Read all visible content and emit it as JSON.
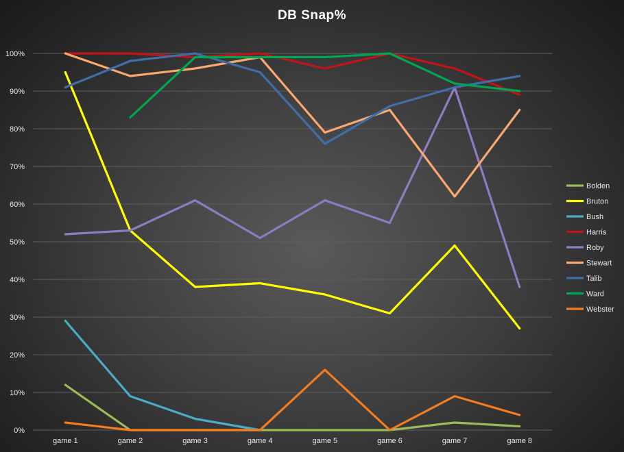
{
  "chart_data": {
    "type": "line",
    "title": "DB Snap%",
    "xlabel": "",
    "ylabel": "",
    "categories": [
      "game 1",
      "game 2",
      "game 3",
      "game 4",
      "game 5",
      "game 6",
      "game 7",
      "game 8"
    ],
    "ylim": [
      0,
      100
    ],
    "yticks": [
      0,
      10,
      20,
      30,
      40,
      50,
      60,
      70,
      80,
      90,
      100
    ],
    "ytick_suffix": "%",
    "grid": "horizontal",
    "legend_position": "right",
    "series": [
      {
        "name": "Bolden",
        "color": "#9bbb59",
        "values": [
          12,
          0,
          0,
          0,
          0,
          0,
          2,
          1
        ]
      },
      {
        "name": "Bruton",
        "color": "#ffff00",
        "values": [
          95,
          53,
          38,
          39,
          36,
          31,
          49,
          27
        ]
      },
      {
        "name": "Bush",
        "color": "#4bacc6",
        "values": [
          29,
          9,
          3,
          0,
          null,
          null,
          null,
          null
        ]
      },
      {
        "name": "Harris",
        "color": "#c0141a",
        "values": [
          100,
          100,
          99,
          100,
          96,
          100,
          96,
          89
        ]
      },
      {
        "name": "Roby",
        "color": "#8e7cc3",
        "values": [
          52,
          53,
          61,
          51,
          61,
          55,
          91,
          38
        ]
      },
      {
        "name": "Stewart",
        "color": "#f9a870",
        "values": [
          100,
          94,
          96,
          99,
          79,
          85,
          62,
          85
        ]
      },
      {
        "name": "Talib",
        "color": "#3f6ea8",
        "values": [
          91,
          98,
          100,
          95,
          76,
          86,
          91,
          94
        ]
      },
      {
        "name": "Ward",
        "color": "#00a650",
        "values": [
          null,
          83,
          99,
          99,
          99,
          100,
          92,
          90
        ]
      },
      {
        "name": "Webster",
        "color": "#f57c1f",
        "values": [
          2,
          0,
          0,
          0,
          16,
          0,
          9,
          4
        ]
      }
    ]
  }
}
